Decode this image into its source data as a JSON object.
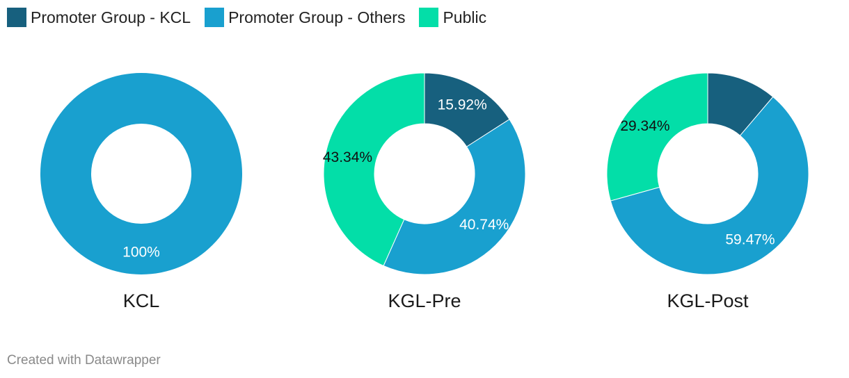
{
  "legend": [
    {
      "label": "Promoter Group - KCL",
      "color": "#17607e"
    },
    {
      "label": "Promoter Group - Others",
      "color": "#19a0cf"
    },
    {
      "label": "Public",
      "color": "#03dea8"
    }
  ],
  "chart_data": [
    {
      "type": "pie",
      "variant": "donut",
      "title": "KCL",
      "slices": [
        {
          "category": "Promoter Group - KCL",
          "value": 0,
          "label": "",
          "label_color": "#ffffff"
        },
        {
          "category": "Promoter Group - Others",
          "value": 100,
          "label": "100%",
          "label_color": "#ffffff"
        },
        {
          "category": "Public",
          "value": 0,
          "label": "",
          "label_color": "#111111"
        }
      ]
    },
    {
      "type": "pie",
      "variant": "donut",
      "title": "KGL-Pre",
      "slices": [
        {
          "category": "Promoter Group - KCL",
          "value": 15.92,
          "label": "15.92%",
          "label_color": "#ffffff"
        },
        {
          "category": "Promoter Group - Others",
          "value": 40.74,
          "label": "40.74%",
          "label_color": "#ffffff"
        },
        {
          "category": "Public",
          "value": 43.34,
          "label": "43.34%",
          "label_color": "#111111"
        }
      ]
    },
    {
      "type": "pie",
      "variant": "donut",
      "title": "KGL-Post",
      "slices": [
        {
          "category": "Promoter Group - KCL",
          "value": 11.19,
          "label": "",
          "label_color": "#ffffff"
        },
        {
          "category": "Promoter Group - Others",
          "value": 59.47,
          "label": "59.47%",
          "label_color": "#ffffff"
        },
        {
          "category": "Public",
          "value": 29.34,
          "label": "29.34%",
          "label_color": "#111111"
        }
      ]
    }
  ],
  "footer": "Created with Datawrapper"
}
